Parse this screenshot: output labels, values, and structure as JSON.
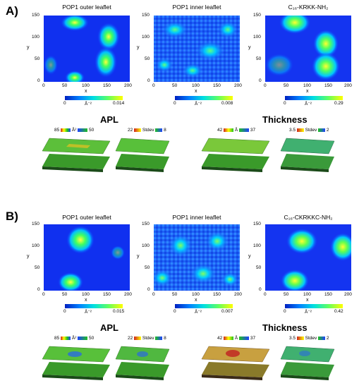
{
  "panels": [
    {
      "letter": "A)",
      "maps": [
        {
          "title": "POP1 outer leaflet",
          "cbar_min": "0",
          "cbar_unit": "Å⁻²",
          "cbar_max": "0.014"
        },
        {
          "title": "POP1 inner leaflet",
          "cbar_min": "0",
          "cbar_unit": "Å⁻²",
          "cbar_max": "0.008"
        },
        {
          "title": "C₁₆-KRKK-NH₂",
          "cbar_min": "0",
          "cbar_unit": "Å⁻²",
          "cbar_max": "0.29"
        }
      ],
      "apl_title": "APL",
      "thickness_title": "Thickness",
      "surfaces": [
        {
          "left": "85",
          "mid": "Å²",
          "right": "50"
        },
        {
          "left": "22",
          "mid": "Stdev",
          "right": "8"
        },
        {
          "left": "42",
          "mid": "Å",
          "right": "37"
        },
        {
          "left": "3.5",
          "mid": "Stdev",
          "right": "2"
        }
      ]
    },
    {
      "letter": "B)",
      "maps": [
        {
          "title": "POP1 outer leaflet",
          "cbar_min": "0",
          "cbar_unit": "Å⁻²",
          "cbar_max": "0.015"
        },
        {
          "title": "POP1 inner leaflet",
          "cbar_min": "0",
          "cbar_unit": "Å⁻²",
          "cbar_max": "0.007"
        },
        {
          "title": "C₁₆-CKRKKC-NH₂",
          "cbar_min": "0",
          "cbar_unit": "Å⁻²",
          "cbar_max": "0.42"
        }
      ],
      "apl_title": "APL",
      "thickness_title": "Thickness",
      "surfaces": [
        {
          "left": "85",
          "mid": "Å²",
          "right": "50"
        },
        {
          "left": "22",
          "mid": "Stdev",
          "right": "8"
        },
        {
          "left": "42",
          "mid": "Å",
          "right": "37"
        },
        {
          "left": "3.5",
          "mid": "Stdev",
          "right": "2"
        }
      ]
    }
  ],
  "axes": {
    "xlabel": "x",
    "ylabel": "y",
    "xticks": [
      "0",
      "50",
      "100",
      "150",
      "200"
    ],
    "yticks": [
      "0",
      "50",
      "100",
      "150"
    ]
  }
}
